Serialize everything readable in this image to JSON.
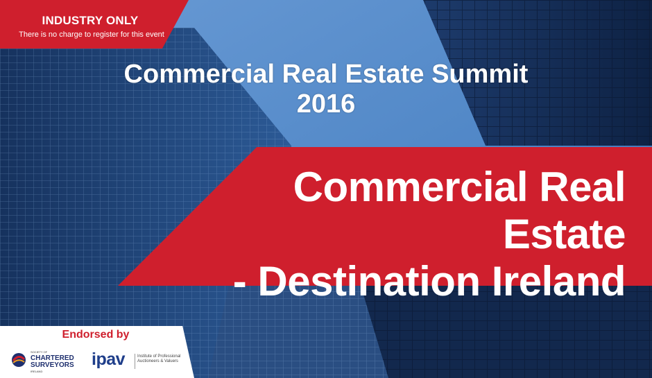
{
  "tag": {
    "title": "INDUSTRY ONLY",
    "subtitle": "There is no charge to register for this event"
  },
  "summit": {
    "line1": "Commercial Real Estate Summit",
    "line2": "2016"
  },
  "banner": {
    "line1": "Commercial Real Estate",
    "line2": "- Destination Ireland"
  },
  "endorsed": {
    "label": "Endorsed by",
    "scsi": {
      "pre": "SOCIETY OF",
      "line1": "CHARTERED",
      "line2": "SURVEYORS",
      "post": "IRELAND"
    },
    "ipav": {
      "name": "ipav",
      "desc_line1": "Institute of Professional",
      "desc_line2": "Auctioneers & Valuers"
    }
  },
  "colors": {
    "brand_red": "#cf1f2d",
    "sky": "#4f86c6",
    "navy": "#1e2f6e"
  }
}
